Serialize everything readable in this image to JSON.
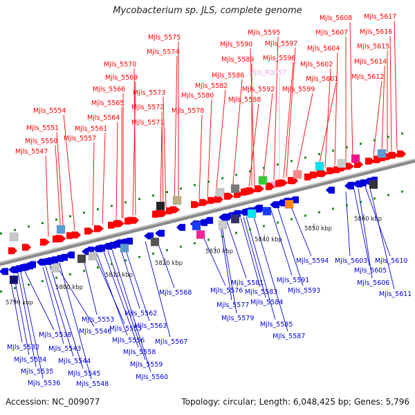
{
  "title": "Mycobacterium sp. JLS, complete genome",
  "footer": {
    "accession": "Accession: NC_009077",
    "summary": "Topology: circular; Length: 6,048,425 bp; Genes: 5,796"
  },
  "colors": {
    "forward_gene": "#ff0000",
    "reverse_gene": "#0000dd",
    "rna_gene": "#f3a5e6",
    "backbone": "#888888"
  },
  "kbp_labels": [
    "5790 kbp",
    "5800 kbp",
    "5810 kbp",
    "5820 kbp",
    "5830 kbp",
    "5840 kbp",
    "5850 kbp",
    "5860 kbp"
  ],
  "forward_genes": [
    "Mjls_5547",
    "Mjls_5550",
    "Mjls_5551",
    "Mjls_5554",
    "Mjls_5557",
    "Mjls_5561",
    "Mjls_5564",
    "Mjls_5565",
    "Mjls_5566",
    "Mjls_5569",
    "Mjls_5570",
    "Mjls_5571",
    "Mjls_5572",
    "Mjls_5573",
    "Mjls_5574",
    "Mjls_5575",
    "Mjls_5578",
    "Mjls_5580",
    "Mjls_5582",
    "Mjls_5586",
    "Mjls_5588",
    "Mjls_5589",
    "Mjls_5590",
    "Mjls_5592",
    "Mjls_5595",
    "Mjls_R0057",
    "Mjls_5596",
    "Mjls_5597",
    "Mjls_5599",
    "Mjls_5601",
    "Mjls_5602",
    "Mjls_5604",
    "Mjls_5607",
    "Mjls_5608",
    "Mjls_5612",
    "Mjls_5614",
    "Mjls_5615",
    "Mjls_5616",
    "Mjls_5617"
  ],
  "reverse_genes": [
    "Mjls_5532",
    "Mjls_5534",
    "Mjls_5535",
    "Mjls_5536",
    "Mjls_5538",
    "Mjls_5543",
    "Mjls_5544",
    "Mjls_5545",
    "Mjls_5546",
    "Mjls_5548",
    "Mjls_5553",
    "Mjls_5555",
    "Mjls_5556",
    "Mjls_5558",
    "Mjls_5559",
    "Mjls_5560",
    "Mjls_5562",
    "Mjls_5563",
    "Mjls_5567",
    "Mjls_5568",
    "Mjls_5576",
    "Mjls_5577",
    "Mjls_5579",
    "Mjls_5581",
    "Mjls_5583",
    "Mjls_5584",
    "Mjls_5585",
    "Mjls_5587",
    "Mjls_5591",
    "Mjls_5593",
    "Mjls_5594",
    "Mjls_5603",
    "Mjls_5605",
    "Mjls_5606",
    "Mjls_5610",
    "Mjls_5611"
  ]
}
